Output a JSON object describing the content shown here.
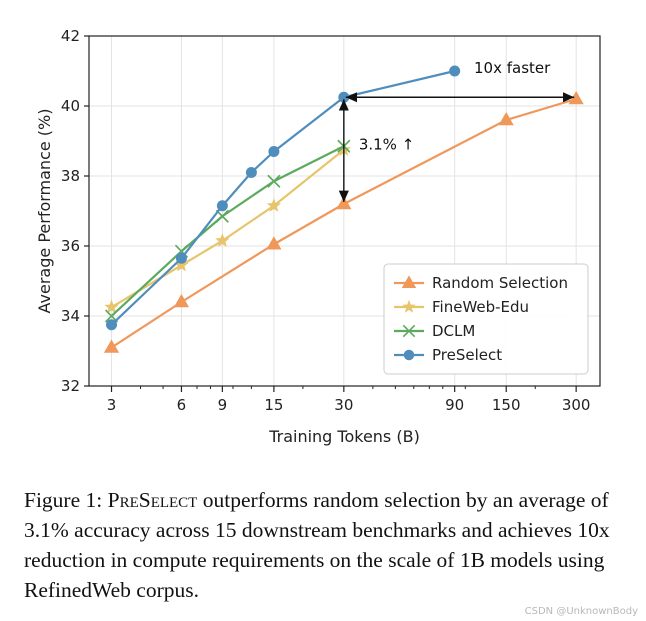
{
  "chart_data": {
    "type": "line",
    "xscale": "log",
    "x_ticks": [
      3,
      6,
      9,
      15,
      30,
      90,
      150,
      300
    ],
    "x_minor_ticks": [
      4,
      5,
      7,
      8,
      10,
      12,
      20,
      40,
      50,
      60,
      70,
      80,
      100,
      200
    ],
    "xlim": [
      2.4,
      380
    ],
    "ylim": [
      32,
      42
    ],
    "y_ticks": [
      32,
      34,
      36,
      38,
      40,
      42
    ],
    "xlabel": "Training Tokens (B)",
    "ylabel": "Average Performance (%)",
    "grid": true,
    "legend_position": "bottom-right",
    "series": [
      {
        "name": "Random Selection",
        "color": "#f0975a",
        "marker": "triangle",
        "x": [
          3,
          6,
          15,
          30,
          150,
          300
        ],
        "y": [
          33.1,
          34.4,
          36.05,
          37.2,
          39.6,
          40.2
        ]
      },
      {
        "name": "FineWeb-Edu",
        "color": "#e6c56c",
        "marker": "star",
        "x": [
          3,
          6,
          9,
          15,
          30
        ],
        "y": [
          34.25,
          35.45,
          36.15,
          37.15,
          38.75
        ]
      },
      {
        "name": "DCLM",
        "color": "#5caa5e",
        "marker": "x",
        "x": [
          3,
          6,
          9,
          15,
          30
        ],
        "y": [
          34.0,
          35.85,
          36.85,
          37.85,
          38.85
        ]
      },
      {
        "name": "PreSelect",
        "color": "#4f8dbd",
        "marker": "circle",
        "x": [
          3,
          6,
          9,
          12,
          15,
          30,
          90
        ],
        "y": [
          33.75,
          35.65,
          37.15,
          38.1,
          38.7,
          40.25,
          41.0
        ]
      }
    ],
    "annotations": [
      {
        "text": "10x faster",
        "kind": "horizontal-double-arrow",
        "from": [
          30,
          40.25
        ],
        "to": [
          300,
          40.25
        ]
      },
      {
        "text": "3.1% ↑",
        "kind": "vertical-double-arrow",
        "from": [
          30,
          37.2
        ],
        "to": [
          30,
          40.25
        ]
      }
    ]
  },
  "caption": {
    "prefix": "Figure 1: ",
    "name": "PreSelect",
    "rest": " outperforms random selection by an average of 3.1% accuracy across 15 downstream benchmarks and achieves 10x reduction in compute requirements on the scale of 1B models using RefinedWeb corpus."
  },
  "watermark": "CSDN @UnknownBody"
}
